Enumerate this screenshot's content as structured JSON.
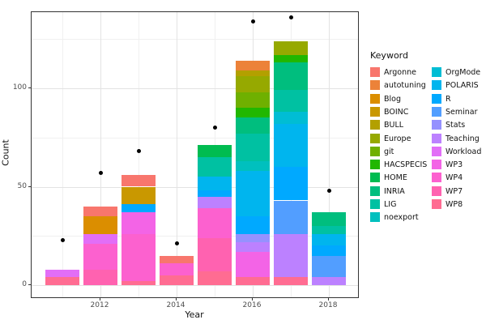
{
  "axes": {
    "x_title": "Year",
    "y_title": "Count",
    "x_tick_labels": [
      "2012",
      "2014",
      "2016",
      "2018"
    ],
    "x_major_years": [
      2012,
      2014,
      2016,
      2018
    ],
    "x_minor_years": [
      2011,
      2013,
      2015,
      2017
    ],
    "y_tick_labels": [
      "0",
      "50",
      "100"
    ],
    "y_major": [
      0,
      50,
      100
    ],
    "y_minor": [
      25,
      75,
      125
    ]
  },
  "legend": {
    "title": "Keyword"
  },
  "chart_data": {
    "type": "bar",
    "stacked": true,
    "title": "",
    "xlabel": "Year",
    "ylabel": "Count",
    "x": [
      2011,
      2012,
      2013,
      2014,
      2015,
      2016,
      2017,
      2018
    ],
    "ylim": [
      0,
      138
    ],
    "grid": true,
    "legend_position": "right",
    "stack_order": "first-series-on-top",
    "series": [
      {
        "name": "Argonne",
        "color": "#F8766D",
        "values": [
          0,
          5,
          6,
          4,
          0,
          0,
          0,
          0
        ]
      },
      {
        "name": "autotuning",
        "color": "#EC8239",
        "values": [
          0,
          0,
          0,
          0,
          0,
          5,
          0,
          0
        ]
      },
      {
        "name": "Blog",
        "color": "#DB8E00",
        "values": [
          0,
          9,
          0,
          0,
          0,
          0,
          0,
          0
        ]
      },
      {
        "name": "BOINC",
        "color": "#C99800",
        "values": [
          0,
          0,
          9,
          0,
          0,
          0,
          0,
          0
        ]
      },
      {
        "name": "BULL",
        "color": "#B3A000",
        "values": [
          0,
          0,
          0,
          0,
          0,
          3,
          0,
          0
        ]
      },
      {
        "name": "Europe",
        "color": "#96A900",
        "values": [
          0,
          0,
          0,
          0,
          0,
          8,
          7,
          0
        ]
      },
      {
        "name": "git",
        "color": "#6FB000",
        "values": [
          0,
          0,
          0,
          0,
          0,
          8,
          0,
          0
        ]
      },
      {
        "name": "HACSPECIS",
        "color": "#21B700",
        "values": [
          0,
          0,
          0,
          0,
          0,
          5,
          4,
          0
        ]
      },
      {
        "name": "HOME",
        "color": "#00BC51",
        "values": [
          0,
          0,
          0,
          0,
          6,
          0,
          0,
          0
        ]
      },
      {
        "name": "INRIA",
        "color": "#00BE7E",
        "values": [
          0,
          0,
          0,
          0,
          0,
          8,
          14,
          7
        ]
      },
      {
        "name": "LIG",
        "color": "#00C1A2",
        "values": [
          0,
          0,
          0,
          0,
          10,
          14,
          11,
          4
        ]
      },
      {
        "name": "noexport",
        "color": "#00C0BE",
        "values": [
          0,
          0,
          0,
          0,
          0,
          5,
          0,
          0
        ]
      },
      {
        "name": "OrgMode",
        "color": "#00BDD4",
        "values": [
          0,
          0,
          0,
          0,
          0,
          0,
          6,
          0
        ]
      },
      {
        "name": "POLARIS",
        "color": "#00B5EE",
        "values": [
          0,
          0,
          0,
          0,
          7,
          23,
          22,
          6
        ]
      },
      {
        "name": "R",
        "color": "#00A9FF",
        "values": [
          0,
          0,
          4,
          0,
          3,
          9,
          17,
          5
        ]
      },
      {
        "name": "Seminar",
        "color": "#529EFF",
        "values": [
          0,
          0,
          0,
          0,
          0,
          0,
          17,
          11
        ]
      },
      {
        "name": "Stats",
        "color": "#9591FF",
        "values": [
          0,
          0,
          0,
          0,
          0,
          4,
          0,
          0
        ]
      },
      {
        "name": "Teaching",
        "color": "#BC81FF",
        "values": [
          0,
          0,
          0,
          0,
          6,
          5,
          22,
          4
        ]
      },
      {
        "name": "Workload",
        "color": "#E26EF7",
        "values": [
          4,
          5,
          0,
          0,
          0,
          0,
          0,
          0
        ]
      },
      {
        "name": "WP3",
        "color": "#F364E6",
        "values": [
          0,
          0,
          11,
          0,
          0,
          13,
          0,
          0
        ]
      },
      {
        "name": "WP4",
        "color": "#FC61CF",
        "values": [
          0,
          13,
          24,
          6,
          15,
          0,
          0,
          0
        ]
      },
      {
        "name": "WP7",
        "color": "#FF62B0",
        "values": [
          0,
          8,
          0,
          0,
          17,
          0,
          0,
          0
        ]
      },
      {
        "name": "WP8",
        "color": "#FF6C92",
        "values": [
          4,
          0,
          2,
          5,
          7,
          4,
          4,
          0
        ]
      }
    ],
    "bar_totals": [
      8,
      40,
      56,
      15,
      71,
      114,
      124,
      37
    ],
    "points": {
      "marker": "dot",
      "color": "#000000",
      "values": [
        23,
        57,
        68,
        21,
        80,
        134,
        136,
        48
      ]
    }
  }
}
